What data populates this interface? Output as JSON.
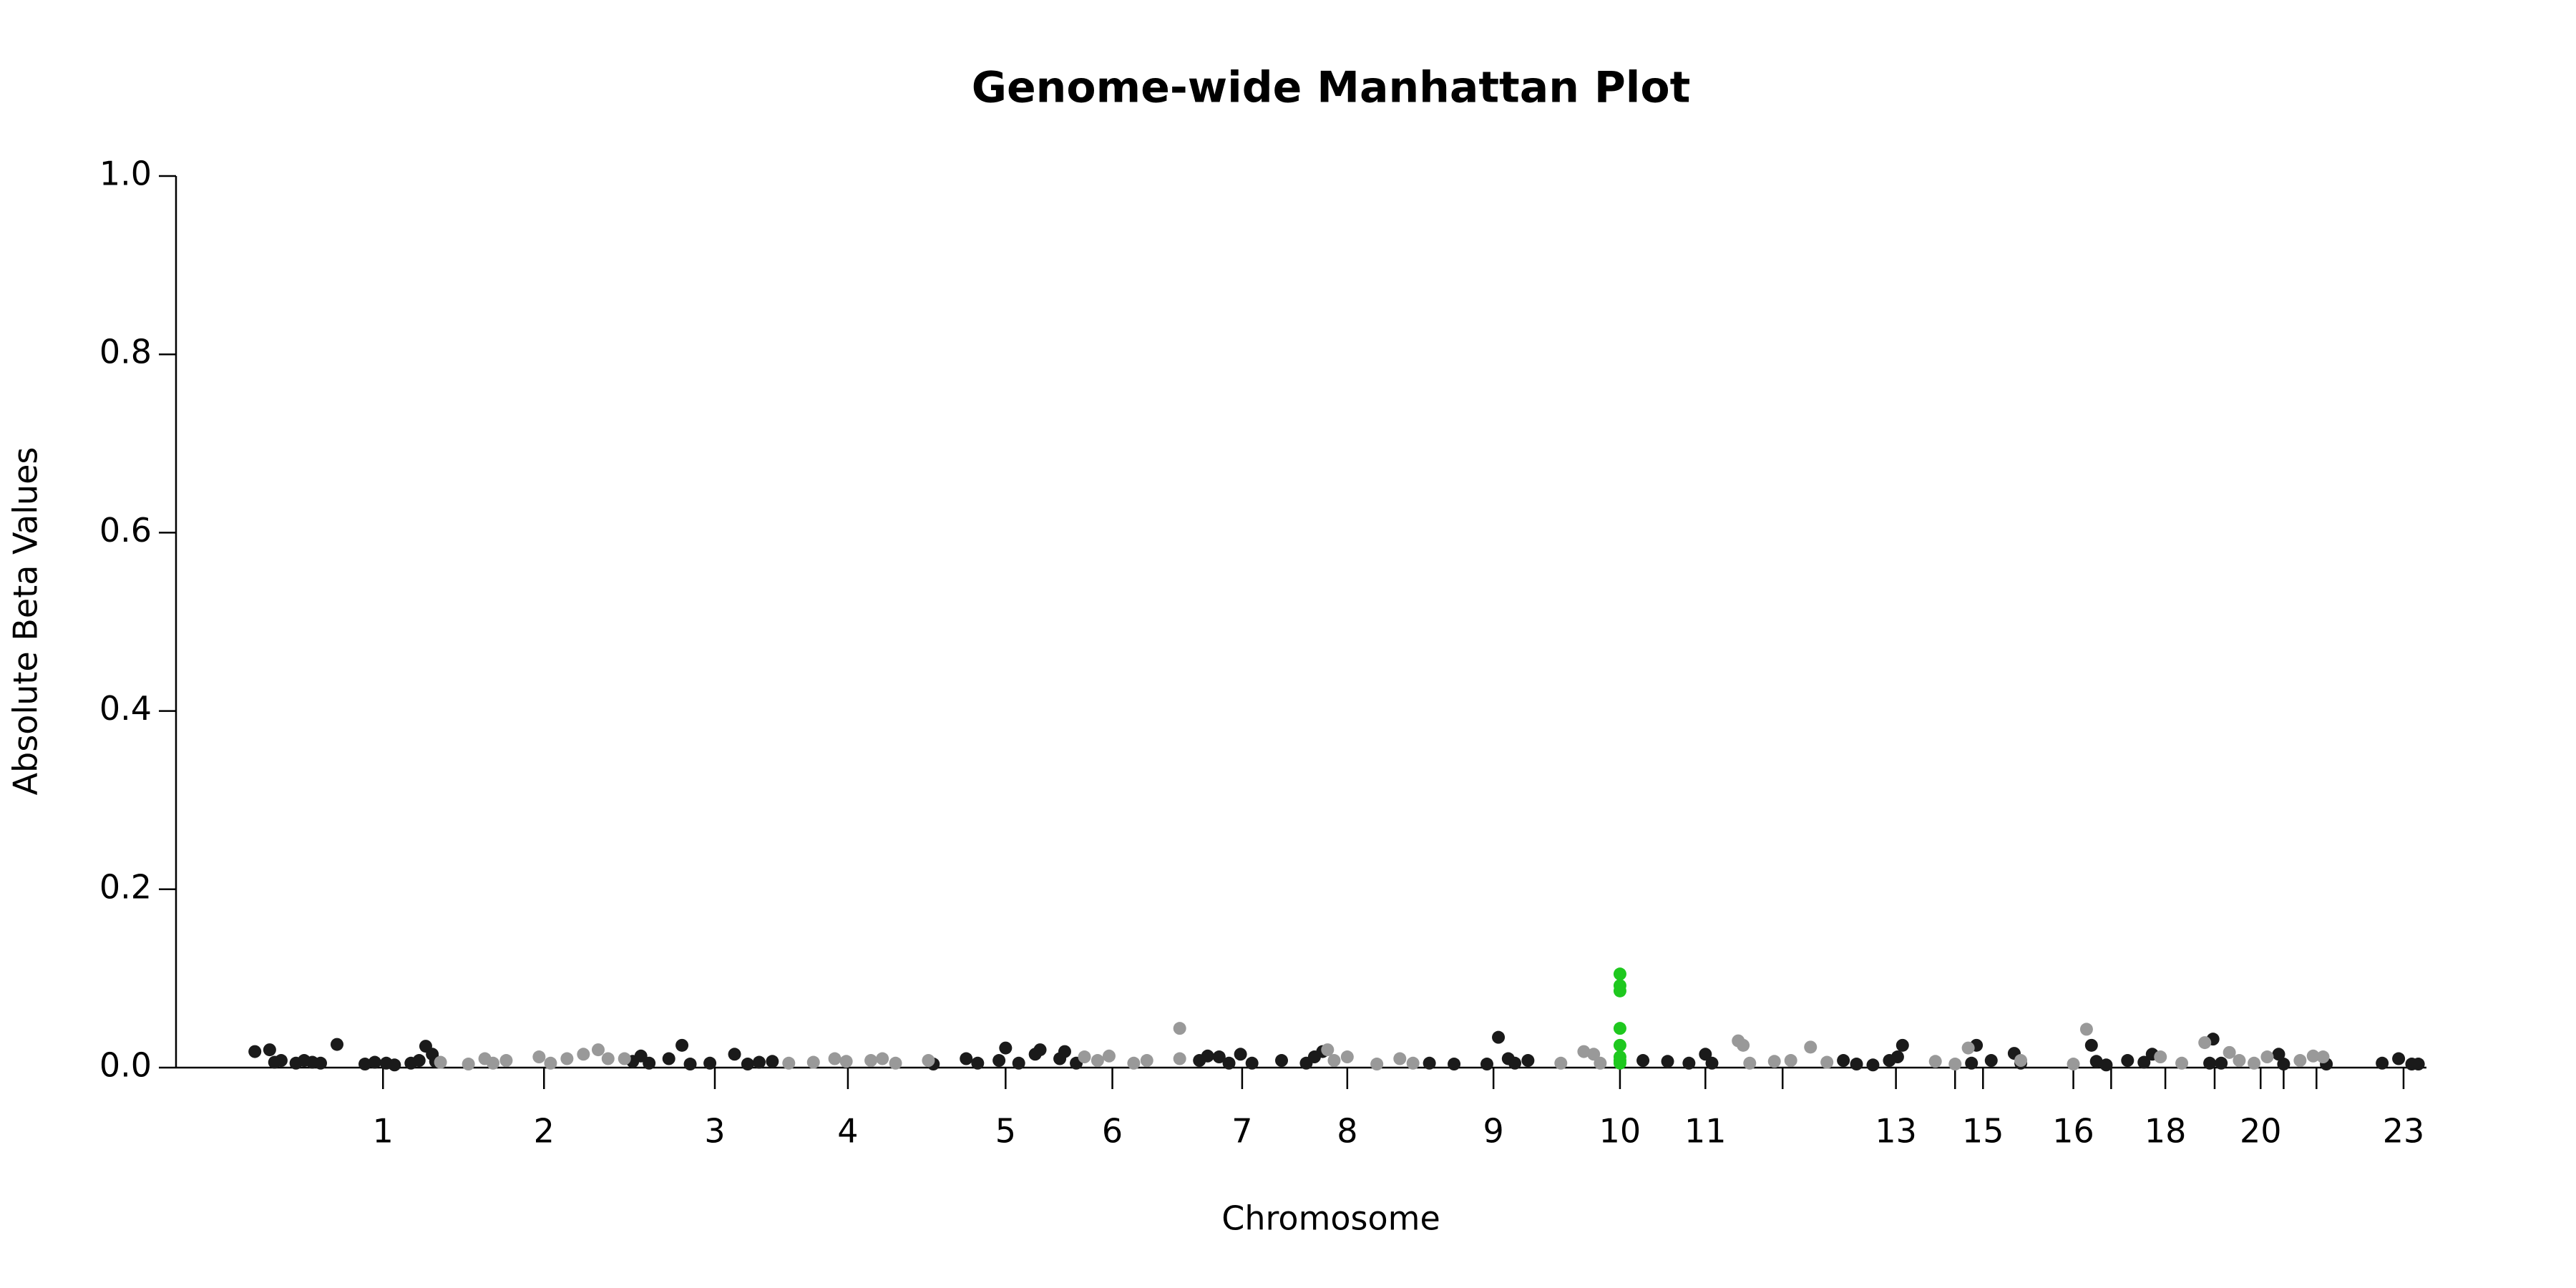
{
  "chart_data": {
    "type": "scatter",
    "title": "Genome-wide Manhattan Plot",
    "xlabel": "Chromosome",
    "ylabel": "Absolute Beta Values",
    "xlim": [
      0,
      1400
    ],
    "ylim": [
      0,
      1.0
    ],
    "yticks": [
      {
        "value": 0,
        "label": "0.0"
      },
      0.2,
      0.4,
      0.6,
      0.8,
      {
        "value": 1.0,
        "label": "1.0"
      }
    ],
    "xticks": [
      {
        "value": 126,
        "label": "1"
      },
      {
        "value": 224,
        "label": "2"
      },
      {
        "value": 328,
        "label": "3"
      },
      {
        "value": 409,
        "label": "4"
      },
      {
        "value": 505,
        "label": "5"
      },
      {
        "value": 570,
        "label": "6"
      },
      {
        "value": 649,
        "label": "7"
      },
      {
        "value": 713,
        "label": "8"
      },
      {
        "value": 802,
        "label": "9"
      },
      {
        "value": 879,
        "label": "10"
      },
      {
        "value": 931,
        "label": "11"
      },
      {
        "value": 978,
        "label": null
      },
      {
        "value": 1047,
        "label": "13"
      },
      {
        "value": 1083,
        "label": null
      },
      {
        "value": 1100,
        "label": "15"
      },
      {
        "value": 1155,
        "label": "16"
      },
      {
        "value": 1178,
        "label": null
      },
      {
        "value": 1211,
        "label": "18"
      },
      {
        "value": 1241,
        "label": null
      },
      {
        "value": 1269,
        "label": "20"
      },
      {
        "value": 1283,
        "label": null
      },
      {
        "value": 1303,
        "label": null
      },
      {
        "value": 1356,
        "label": "23"
      }
    ],
    "series": [
      {
        "color": "#1a1a1a",
        "x": [
          48,
          57,
          60,
          64,
          73,
          78,
          83,
          88,
          98,
          115,
          121,
          128,
          133,
          143,
          148,
          152,
          156,
          158,
          278,
          283,
          288,
          300,
          308,
          313,
          325,
          340,
          348,
          355,
          363,
          461,
          481,
          488,
          505,
          501,
          513,
          523,
          526,
          538,
          541,
          548,
          623,
          628,
          635,
          641,
          648,
          655,
          673,
          688,
          693,
          698,
          763,
          778,
          798,
          805,
          811,
          815,
          823,
          893,
          908,
          921,
          931,
          935,
          1015,
          1023,
          1033,
          1043,
          1051,
          1048,
          1093,
          1096,
          1105,
          1119,
          1123,
          1166,
          1169,
          1175,
          1188,
          1198,
          1203,
          1238,
          1240,
          1245,
          1280,
          1283,
          1309,
          1343,
          1353,
          1361,
          1365
        ],
        "values": [
          0.018,
          0.02,
          0.006,
          0.008,
          0.005,
          0.008,
          0.006,
          0.005,
          0.026,
          0.004,
          0.006,
          0.005,
          0.003,
          0.005,
          0.008,
          0.024,
          0.015,
          0.007,
          0.007,
          0.013,
          0.005,
          0.01,
          0.025,
          0.004,
          0.005,
          0.015,
          0.004,
          0.006,
          0.007,
          0.004,
          0.01,
          0.005,
          0.022,
          0.008,
          0.005,
          0.015,
          0.02,
          0.01,
          0.018,
          0.005,
          0.008,
          0.013,
          0.012,
          0.005,
          0.015,
          0.005,
          0.008,
          0.005,
          0.012,
          0.018,
          0.005,
          0.004,
          0.004,
          0.034,
          0.01,
          0.005,
          0.008,
          0.008,
          0.007,
          0.005,
          0.015,
          0.005,
          0.008,
          0.004,
          0.003,
          0.008,
          0.025,
          0.012,
          0.005,
          0.025,
          0.008,
          0.016,
          0.005,
          0.025,
          0.007,
          0.003,
          0.008,
          0.006,
          0.015,
          0.005,
          0.032,
          0.005,
          0.015,
          0.004,
          0.004,
          0.005,
          0.01,
          0.004,
          0.004
        ]
      },
      {
        "color": "#999999",
        "x": [
          161,
          178,
          188,
          193,
          201,
          221,
          228,
          238,
          248,
          257,
          263,
          273,
          373,
          388,
          401,
          408,
          423,
          430,
          438,
          458,
          553,
          561,
          568,
          583,
          591,
          611,
          611,
          701,
          705,
          713,
          731,
          745,
          753,
          857,
          863,
          867,
          843,
          951,
          954,
          958,
          973,
          983,
          995,
          1005,
          1071,
          1083,
          1091,
          1123,
          1155,
          1163,
          1208,
          1221,
          1235,
          1250,
          1256,
          1265,
          1273,
          1293,
          1301,
          1307
        ],
        "values": [
          0.006,
          0.004,
          0.01,
          0.005,
          0.008,
          0.012,
          0.005,
          0.01,
          0.015,
          0.02,
          0.01,
          0.01,
          0.005,
          0.006,
          0.01,
          0.007,
          0.008,
          0.01,
          0.005,
          0.008,
          0.012,
          0.008,
          0.013,
          0.005,
          0.008,
          0.044,
          0.01,
          0.02,
          0.008,
          0.012,
          0.004,
          0.01,
          0.005,
          0.018,
          0.015,
          0.005,
          0.005,
          0.03,
          0.025,
          0.005,
          0.007,
          0.008,
          0.023,
          0.006,
          0.007,
          0.004,
          0.022,
          0.008,
          0.004,
          0.043,
          0.012,
          0.005,
          0.028,
          0.017,
          0.008,
          0.005,
          0.012,
          0.008,
          0.013,
          0.012
        ]
      },
      {
        "color": "#1ec81e",
        "x": [
          879,
          879,
          879,
          879,
          879,
          879,
          879,
          879
        ],
        "values": [
          0.105,
          0.092,
          0.086,
          0.044,
          0.025,
          0.012,
          0.005,
          0.008
        ]
      }
    ]
  }
}
